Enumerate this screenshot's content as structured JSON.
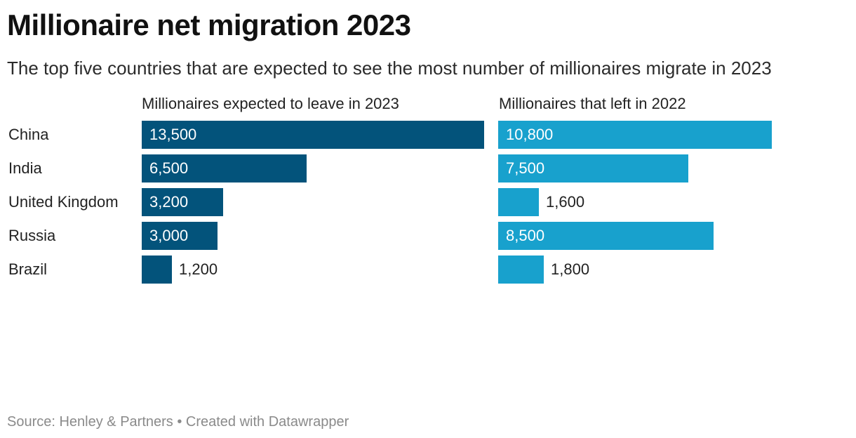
{
  "chart_data": {
    "type": "bar",
    "title": "Millionaire net migration 2023",
    "subtitle": "The top five countries that are expected to see the most number of millionaires migrate in 2023",
    "categories": [
      "China",
      "India",
      "United Kingdom",
      "Russia",
      "Brazil"
    ],
    "series": [
      {
        "name": "Millionaires expected to leave in 2023",
        "values": [
          13500,
          6500,
          3200,
          3000,
          1200
        ],
        "labels": [
          "13,500",
          "6,500",
          "3,200",
          "3,000",
          "1,200"
        ],
        "color": "#03537b"
      },
      {
        "name": "Millionaires that left in 2022",
        "values": [
          10800,
          7500,
          1600,
          8500,
          1800
        ],
        "labels": [
          "10,800",
          "7,500",
          "1,600",
          "8,500",
          "1,800"
        ],
        "color": "#18a1cd"
      }
    ],
    "grid": false
  },
  "footer": {
    "source": "Source: Henley & Partners • Created with Datawrapper"
  }
}
